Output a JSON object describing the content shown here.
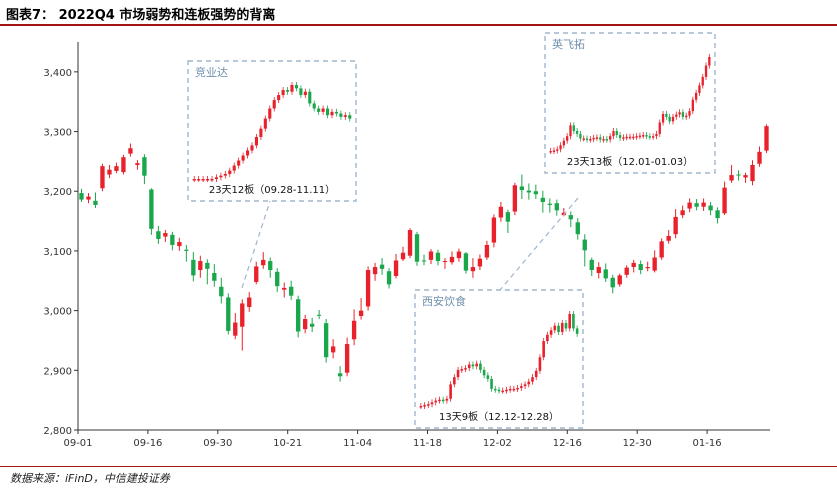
{
  "figure": {
    "title": "图表7： 2022Q4 市场弱势和连板强势的背离",
    "source": "数据来源：iFinD，中信建投证券"
  },
  "colors": {
    "up": "#e8212b",
    "down": "#1aa64b",
    "box": "#9fb6cc",
    "inset_label": "#6f8fae",
    "axis": "#333333"
  },
  "chart_data": {
    "type": "candlestick",
    "title": "2022Q4 市场弱势和连板强势的背离",
    "ylim": [
      2800,
      3450
    ],
    "yticks": [
      2800,
      2900,
      3000,
      3100,
      3200,
      3300,
      3400
    ],
    "ytick_labels": [
      "2,800",
      "2,900",
      "3,000",
      "3,100",
      "3,200",
      "3,300",
      "3,400"
    ],
    "xtick_labels": [
      "09-01",
      "09-16",
      "09-30",
      "10-21",
      "11-04",
      "11-18",
      "12-02",
      "12-16",
      "12-30",
      "01-16"
    ],
    "xtick_index": [
      0,
      10,
      20,
      30,
      40,
      50,
      60,
      70,
      80,
      90
    ],
    "candles": [
      [
        3197,
        3186,
        3204,
        3182
      ],
      [
        3186,
        3191,
        3197,
        3180
      ],
      [
        3184,
        3177,
        3198,
        3172
      ],
      [
        3205,
        3242,
        3246,
        3200
      ],
      [
        3228,
        3236,
        3244,
        3222
      ],
      [
        3234,
        3242,
        3248,
        3230
      ],
      [
        3232,
        3257,
        3261,
        3228
      ],
      [
        3263,
        3272,
        3280,
        3258
      ],
      [
        3244,
        3247,
        3252,
        3236
      ],
      [
        3257,
        3226,
        3262,
        3212
      ],
      [
        3203,
        3137,
        3205,
        3127
      ],
      [
        3133,
        3120,
        3142,
        3112
      ],
      [
        3124,
        3130,
        3135,
        3115
      ],
      [
        3127,
        3110,
        3132,
        3101
      ],
      [
        3108,
        3115,
        3122,
        3100
      ],
      [
        3102,
        3100,
        3110,
        3082
      ],
      [
        3085,
        3059,
        3098,
        3049
      ],
      [
        3068,
        3083,
        3092,
        3055
      ],
      [
        3080,
        3070,
        3086,
        3044
      ],
      [
        3063,
        3050,
        3078,
        3040
      ],
      [
        3040,
        3024,
        3055,
        3012
      ],
      [
        3022,
        2966,
        3029,
        2960
      ],
      [
        2958,
        2980,
        2996,
        2952
      ],
      [
        2973,
        3012,
        3019,
        2933
      ],
      [
        3006,
        3022,
        3031,
        2998
      ],
      [
        3048,
        3074,
        3082,
        3044
      ],
      [
        3076,
        3085,
        3098,
        3070
      ],
      [
        3083,
        3068,
        3089,
        3055
      ],
      [
        3065,
        3041,
        3071,
        3031
      ],
      [
        3035,
        3038,
        3047,
        3022
      ],
      [
        3040,
        3025,
        3050,
        3018
      ],
      [
        3019,
        2965,
        3025,
        2955
      ],
      [
        2969,
        2986,
        2993,
        2962
      ],
      [
        2978,
        2973,
        2988,
        2964
      ],
      [
        2993,
        2992,
        3001,
        2986
      ],
      [
        2979,
        2922,
        2986,
        2913
      ],
      [
        2930,
        2940,
        2952,
        2920
      ],
      [
        2895,
        2890,
        2907,
        2881
      ],
      [
        2896,
        2944,
        2955,
        2890
      ],
      [
        2952,
        2983,
        3002,
        2942
      ],
      [
        2991,
        3000,
        3021,
        2985
      ],
      [
        3007,
        3068,
        3074,
        3000
      ],
      [
        3061,
        3073,
        3080,
        3050
      ],
      [
        3077,
        3070,
        3088,
        3060
      ],
      [
        3066,
        3044,
        3071,
        3037
      ],
      [
        3058,
        3084,
        3095,
        3054
      ],
      [
        3086,
        3097,
        3107,
        3083
      ],
      [
        3092,
        3135,
        3138,
        3088
      ],
      [
        3128,
        3082,
        3132,
        3075
      ],
      [
        3084,
        3083,
        3094,
        3076
      ],
      [
        3085,
        3099,
        3103,
        3078
      ],
      [
        3097,
        3083,
        3102,
        3076
      ],
      [
        3083,
        3083,
        3088,
        3070
      ],
      [
        3081,
        3090,
        3099,
        3077
      ],
      [
        3088,
        3099,
        3104,
        3082
      ],
      [
        3096,
        3067,
        3098,
        3062
      ],
      [
        3066,
        3073,
        3088,
        3055
      ],
      [
        3074,
        3087,
        3094,
        3068
      ],
      [
        3089,
        3110,
        3117,
        3085
      ],
      [
        3114,
        3156,
        3161,
        3106
      ],
      [
        3156,
        3174,
        3182,
        3149
      ],
      [
        3165,
        3149,
        3169,
        3130
      ],
      [
        3166,
        3210,
        3214,
        3160
      ],
      [
        3208,
        3202,
        3228,
        3187
      ],
      [
        3201,
        3198,
        3213,
        3186
      ],
      [
        3200,
        3195,
        3211,
        3187
      ],
      [
        3189,
        3182,
        3201,
        3164
      ],
      [
        3179,
        3177,
        3188,
        3164
      ],
      [
        3180,
        3168,
        3186,
        3159
      ],
      [
        3160,
        3164,
        3172,
        3158
      ],
      [
        3160,
        3153,
        3166,
        3140
      ],
      [
        3148,
        3128,
        3155,
        3119
      ],
      [
        3119,
        3101,
        3128,
        3074
      ],
      [
        3085,
        3068,
        3089,
        3058
      ],
      [
        3063,
        3073,
        3081,
        3054
      ],
      [
        3069,
        3054,
        3079,
        3048
      ],
      [
        3055,
        3039,
        3060,
        3029
      ],
      [
        3044,
        3059,
        3062,
        3040
      ],
      [
        3060,
        3072,
        3076,
        3055
      ],
      [
        3073,
        3080,
        3085,
        3064
      ],
      [
        3078,
        3068,
        3084,
        3061
      ],
      [
        3071,
        3073,
        3082,
        3066
      ],
      [
        3067,
        3089,
        3101,
        3064
      ],
      [
        3089,
        3116,
        3121,
        3085
      ],
      [
        3117,
        3125,
        3135,
        3112
      ],
      [
        3128,
        3157,
        3170,
        3121
      ],
      [
        3160,
        3168,
        3176,
        3155
      ],
      [
        3171,
        3181,
        3188,
        3165
      ],
      [
        3180,
        3174,
        3187,
        3168
      ],
      [
        3174,
        3181,
        3188,
        3167
      ],
      [
        3176,
        3168,
        3182,
        3160
      ],
      [
        3168,
        3155,
        3173,
        3146
      ],
      [
        3163,
        3206,
        3216,
        3160
      ],
      [
        3218,
        3227,
        3244,
        3214
      ],
      [
        3228,
        3227,
        3235,
        3218
      ],
      [
        3223,
        3227,
        3231,
        3214
      ],
      [
        3217,
        3244,
        3252,
        3210
      ],
      [
        3246,
        3266,
        3275,
        3241
      ],
      [
        3268,
        3309,
        3312,
        3264
      ]
    ],
    "insets": [
      {
        "name": "竞业达",
        "period": "23天12板（09.28-11.11）",
        "series": [
          10,
          10,
          10,
          10,
          10,
          11,
          12,
          13,
          15,
          18,
          21,
          24,
          27,
          30,
          35,
          40,
          46,
          52,
          57,
          60,
          63,
          62,
          66,
          64,
          60,
          62,
          55,
          52,
          50,
          52,
          48,
          50,
          49,
          47,
          48,
          46
        ]
      },
      {
        "name": "西安饮食",
        "period": "13天9板（12.12-12.28）",
        "series": [
          6,
          7,
          8,
          10,
          12,
          13,
          12,
          14,
          30,
          38,
          46,
          47,
          48,
          52,
          50,
          53,
          46,
          40,
          36,
          25,
          24,
          23,
          23,
          24,
          25,
          25,
          26,
          28,
          30,
          33,
          38,
          45,
          60,
          78,
          85,
          90,
          95,
          88,
          98,
          92,
          108,
          92,
          86
        ]
      },
      {
        "name": "英飞拓",
        "period": "23天13板（12.01-01.03）",
        "series": [
          10,
          11,
          13,
          20,
          28,
          36,
          55,
          45,
          40,
          32,
          32,
          30,
          31,
          33,
          34,
          30,
          31,
          30,
          36,
          45,
          38,
          33,
          34,
          35,
          35,
          35,
          36,
          37,
          38,
          36,
          35,
          36,
          40,
          60,
          75,
          70,
          62,
          70,
          74,
          78,
          70,
          72,
          80,
          100,
          112,
          125,
          140,
          160,
          175
        ]
      }
    ]
  }
}
